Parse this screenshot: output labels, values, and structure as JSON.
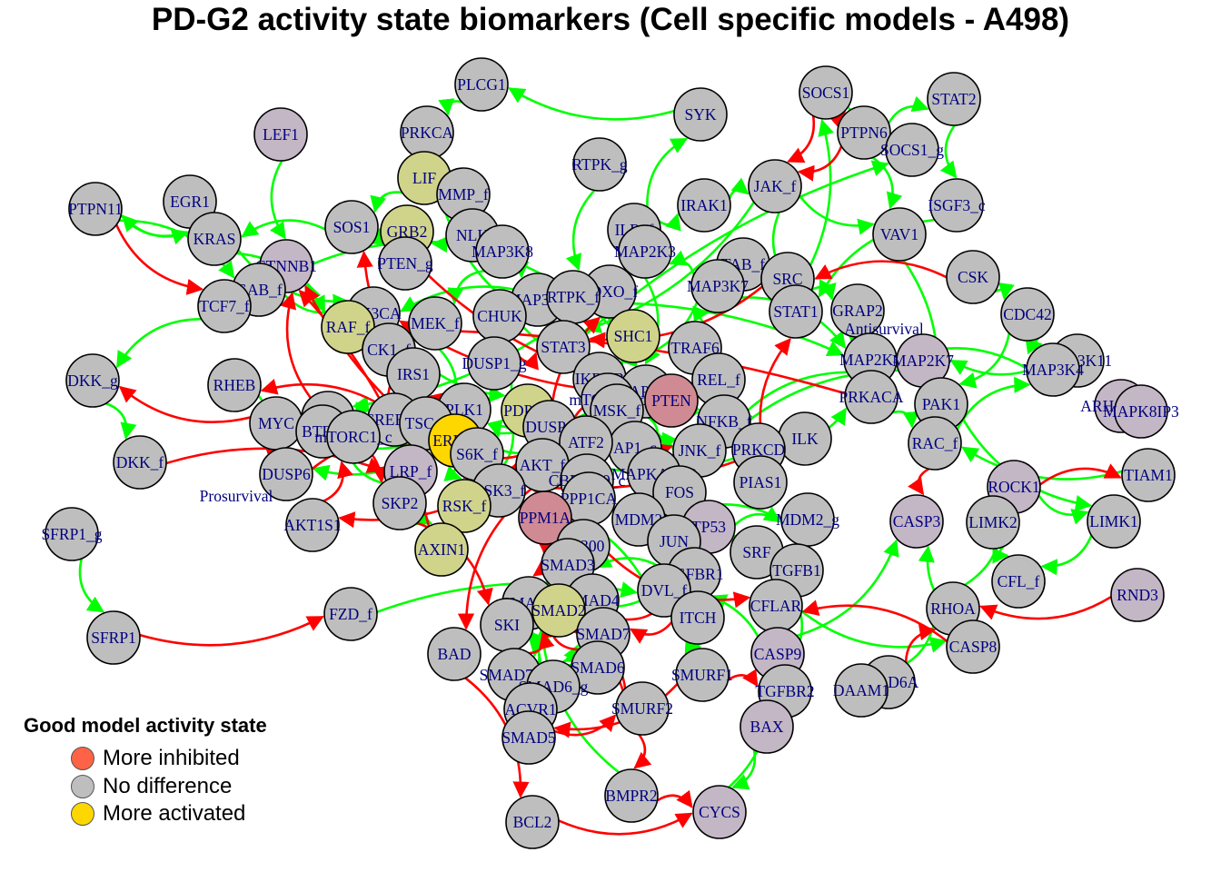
{
  "title": "PD-G2 activity state biomarkers (Cell specific models - A498)",
  "legend": {
    "title": "Good model activity state",
    "items": [
      {
        "label": "More inhibited",
        "color": "#ff6347"
      },
      {
        "label": "No difference",
        "color": "#bebebe"
      },
      {
        "label": "More activated",
        "color": "#ffd700"
      }
    ]
  },
  "colors": {
    "activating_edge": "#00ff00",
    "inhibiting_edge": "#ff0000",
    "label": "#00007f",
    "node_default": "#bebebe",
    "node_tint_purple": "#c3b6c5",
    "node_tint_yellow": "#d0d38a",
    "node_tint_red": "#d08a93",
    "node_activated": "#ffd700"
  },
  "nodes": [
    "PLCG1",
    "SYK",
    "SOCS1",
    "STAT2",
    "LEF1",
    "PRKCA",
    "PTPN6",
    "SOCS1_g",
    "LIF",
    "RTPK_g",
    "JAK_f",
    "EGR1",
    "MMP_f",
    "IRAK1",
    "ISGF3_c",
    "PTPN11",
    "SOS1",
    "GRB2",
    "ILR_f",
    "KRAS",
    "NLK",
    "VAV1",
    "MAP3K8",
    "MAP2K3",
    "CTNNB1",
    "PTEN_g",
    "TAB_f",
    "CSK",
    "GAB_f",
    "SRC",
    "TCF7_f",
    "FOXO_f",
    "MAP3K7",
    "PIK3CA",
    "MAP3K5",
    "RTPK_f",
    "GRAP2",
    "CDC42",
    "CHUK",
    "STAT1",
    "RAF_f",
    "MEK_f",
    "SHC1",
    "Antisurvival",
    "STAT3",
    "CK1_f",
    "TRAF6",
    "MAP2K4",
    "MAP2K7",
    "MAP3K11",
    "DUSP1_g",
    "IRS1",
    "MAP3K4",
    "RHEB",
    "IKBKB",
    "REL_f",
    "DKK_g",
    "MAPK14",
    "PRKACA",
    "PLK1",
    "ARHGAP24",
    "CCND1",
    "CREBBP",
    "PDPK1",
    "mTORC2_c",
    "PTEN",
    "PAK1",
    "MAPK8IP3",
    "MYC",
    "MSK_f",
    "NFKB_f",
    "BTRC",
    "TSC_f",
    "DUSP1",
    "ILK",
    "ERK_f",
    "mTORC1_c",
    "AP1_c",
    "ATF2",
    "JNK_f",
    "PRKCD",
    "RAC_f",
    "DKK_f",
    "S6K_f",
    "AKT_f",
    "LRP_f",
    "CBPp300_c",
    "MAPKAPK2",
    "GSK3_f",
    "ROCK1",
    "TIAM1",
    "DUSP6",
    "PIAS1",
    "FOS",
    "PPP1CA",
    "Prosurvival",
    "SKP2",
    "RSK_f",
    "LIMK2",
    "LIMK1",
    "MDM2",
    "TP53",
    "CASP3",
    "AKT1S1",
    "PPM1A",
    "SFRP1_g",
    "MDM2_g",
    "JUN",
    "AXIN1",
    "EP300",
    "SRF",
    "TGFB1",
    "SMAD3",
    "TGFBR1",
    "CFL_f",
    "RND3",
    "DVL_f",
    "SMAD4",
    "FZD_f",
    "SMAD1",
    "SMAD2",
    "CFLAR",
    "RHOA",
    "ITCH",
    "SKI",
    "SMAD7",
    "SFRP1",
    "BAD",
    "CASP8",
    "SMAD7_g",
    "SMAD6",
    "CASP9",
    "SMURF1",
    "PARD6A",
    "SMAD6_g",
    "DAAM1",
    "TGFBR2",
    "ACVR1",
    "SMURF2",
    "BAX",
    "SMAD5",
    "BMPR2",
    "BCL2",
    "CYCS"
  ]
}
